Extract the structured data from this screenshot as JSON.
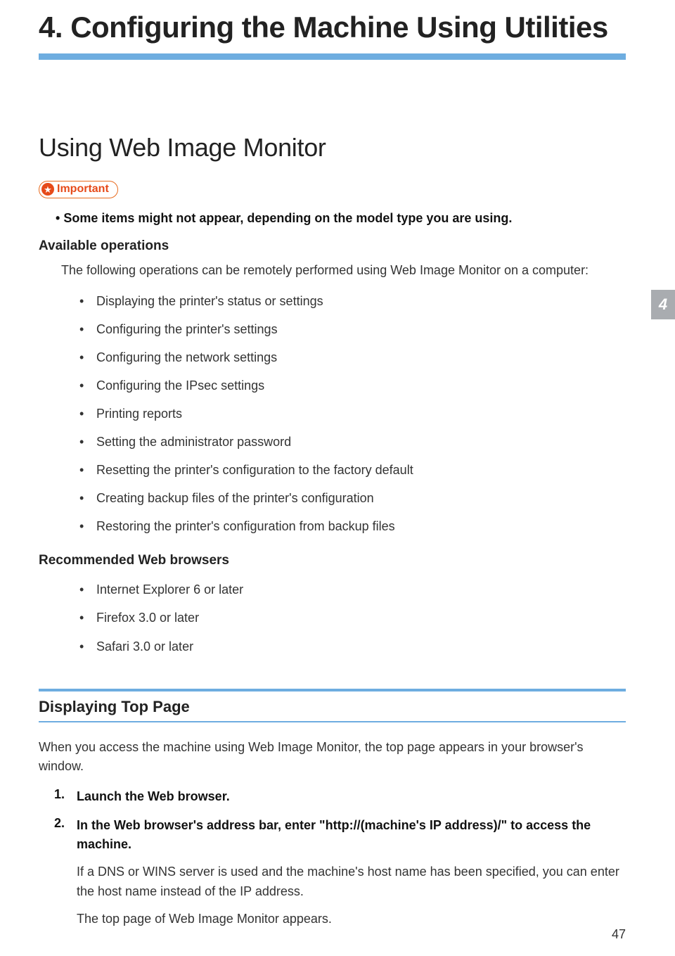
{
  "colors": {
    "accent_blue": "#6eade0",
    "tab_gray": "#a9acb0",
    "badge_orange": "#e64a19",
    "text": "#2e2e2e",
    "background": "#ffffff"
  },
  "chapter": {
    "title": "4. Configuring the Machine Using Utilities"
  },
  "section": {
    "title": "Using Web Image Monitor"
  },
  "important_badge": {
    "star_glyph": "★",
    "label": "Important"
  },
  "important_note": "Some items might not appear, depending on the model type you are using.",
  "available_ops": {
    "heading": "Available operations",
    "intro": "The following operations can be remotely performed using Web Image Monitor on a computer:",
    "items": [
      "Displaying the printer's status or settings",
      "Configuring the printer's settings",
      "Configuring the network settings",
      "Configuring the IPsec settings",
      "Printing reports",
      "Setting the administrator password",
      "Resetting the printer's configuration to the factory default",
      "Creating backup files of the printer's configuration",
      "Restoring the printer's configuration from backup files"
    ]
  },
  "browsers": {
    "heading": "Recommended Web browsers",
    "items": [
      "Internet Explorer 6 or later",
      "Firefox 3.0 or later",
      "Safari 3.0 or later"
    ]
  },
  "subsection": {
    "title": "Displaying Top Page",
    "intro": "When you access the machine using Web Image Monitor, the top page appears in your browser's window.",
    "steps": [
      {
        "head": "Launch the Web browser.",
        "body": []
      },
      {
        "head": "In the Web browser's address bar, enter \"http://(machine's IP address)/\" to access the machine.",
        "body": [
          "If a DNS or WINS server is used and the machine's host name has been specified, you can enter the host name instead of the IP address.",
          "The top page of Web Image Monitor appears."
        ]
      }
    ]
  },
  "side_tab": "4",
  "page_number": "47"
}
